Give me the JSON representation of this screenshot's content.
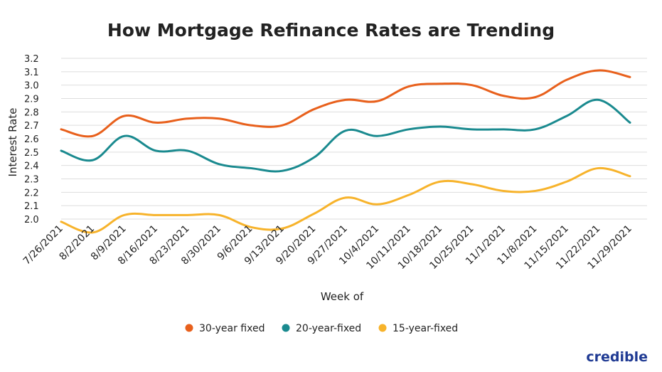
{
  "chart_data": {
    "type": "line",
    "title": "How Mortgage Refinance Rates are Trending",
    "xlabel": "Week of",
    "ylabel": "Interest Rate",
    "ylim": [
      2.0,
      3.2
    ],
    "yticks": [
      "2.0",
      "2.1",
      "2.2",
      "2.3",
      "2.4",
      "2.5",
      "2.6",
      "2.7",
      "2.8",
      "2.9",
      "3.0",
      "3.1",
      "3.2"
    ],
    "grid": "horizontal",
    "legend_position": "bottom",
    "categories": [
      "7/26/2021",
      "8/2/2021",
      "8/9/2021",
      "8/16/2021",
      "8/23/2021",
      "8/30/2021",
      "9/6/2021",
      "9/13/2021",
      "9/20/2021",
      "9/27/2021",
      "10/4/2021",
      "10/11/2021",
      "10/18/2021",
      "10/25/2021",
      "11/1/2021",
      "11/8/2021",
      "11/15/2021",
      "11/22/2021",
      "11/29/2021"
    ],
    "series": [
      {
        "name": "30-year fixed",
        "color": "#e8601c",
        "values": [
          2.67,
          2.62,
          2.77,
          2.72,
          2.75,
          2.75,
          2.7,
          2.7,
          2.82,
          2.89,
          2.88,
          2.99,
          3.01,
          3.0,
          2.92,
          2.91,
          3.04,
          3.11,
          3.06
        ]
      },
      {
        "name": "20-year-fixed",
        "color": "#1a8a8f",
        "values": [
          2.51,
          2.44,
          2.62,
          2.51,
          2.51,
          2.41,
          2.38,
          2.36,
          2.46,
          2.66,
          2.62,
          2.67,
          2.69,
          2.67,
          2.67,
          2.67,
          2.77,
          2.89,
          2.72
        ]
      },
      {
        "name": "15-year-fixed",
        "color": "#f7b32b",
        "values": [
          1.98,
          1.9,
          2.03,
          2.03,
          2.03,
          2.03,
          1.94,
          1.93,
          2.04,
          2.16,
          2.11,
          2.18,
          2.28,
          2.26,
          2.21,
          2.21,
          2.28,
          2.38,
          2.32
        ]
      }
    ]
  },
  "brand": "credible"
}
